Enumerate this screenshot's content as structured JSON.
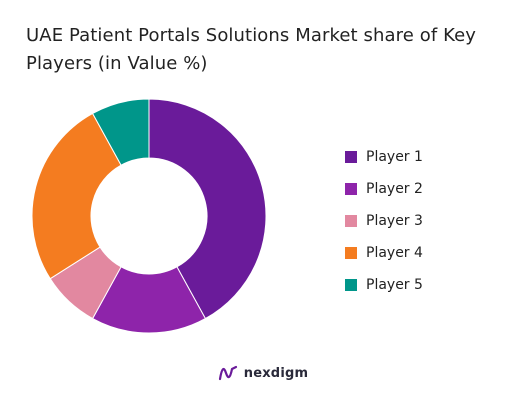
{
  "title": "UAE Patient Portals Solutions Market share of Key Players (in Value %)",
  "brand": {
    "name": "nexdigm",
    "logo_icon": "nexdigm-logo-icon",
    "logo_color": "#6a1b9a"
  },
  "chart_data": {
    "type": "pie",
    "donut": true,
    "title": "UAE Patient Portals Solutions Market share of Key Players (in Value %)",
    "legend_position": "right",
    "categories": [
      "Player 1",
      "Player 2",
      "Player 3",
      "Player 4",
      "Player 5"
    ],
    "values": [
      42,
      16,
      8,
      26,
      8
    ],
    "unit": "%",
    "colors": [
      "#6a1b9a",
      "#8e24aa",
      "#e288a0",
      "#f47c20",
      "#00968a"
    ]
  }
}
